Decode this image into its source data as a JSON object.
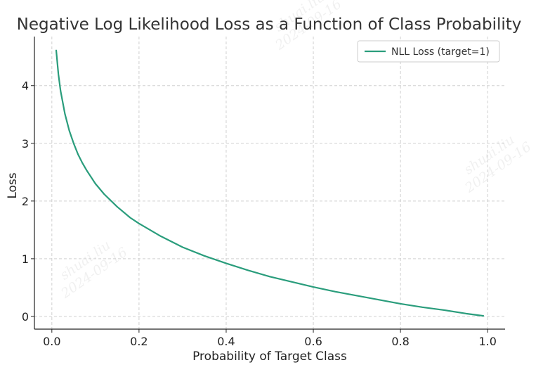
{
  "chart_data": {
    "type": "line",
    "title": "Negative Log Likelihood Loss as a Function of Class Probability",
    "xlabel": "Probability of Target Class",
    "ylabel": "Loss",
    "xlim": [
      -0.04,
      1.04
    ],
    "ylim": [
      -0.22,
      4.85
    ],
    "x_ticks": [
      0.0,
      0.2,
      0.4,
      0.6,
      0.8,
      1.0
    ],
    "x_tick_labels": [
      "0.0",
      "0.2",
      "0.4",
      "0.6",
      "0.8",
      "1.0"
    ],
    "y_ticks": [
      0,
      1,
      2,
      3,
      4
    ],
    "y_tick_labels": [
      "0",
      "1",
      "2",
      "3",
      "4"
    ],
    "grid": true,
    "legend_position": "top-right",
    "series": [
      {
        "name": "NLL Loss (target=1)",
        "color": "#2a9d7c",
        "x": [
          0.01,
          0.015,
          0.02,
          0.03,
          0.04,
          0.05,
          0.06,
          0.07,
          0.08,
          0.1,
          0.12,
          0.15,
          0.18,
          0.2,
          0.25,
          0.3,
          0.35,
          0.4,
          0.45,
          0.5,
          0.55,
          0.6,
          0.65,
          0.7,
          0.75,
          0.8,
          0.85,
          0.9,
          0.95,
          0.99
        ],
        "y": [
          4.61,
          4.2,
          3.91,
          3.51,
          3.22,
          3.0,
          2.81,
          2.66,
          2.53,
          2.3,
          2.12,
          1.9,
          1.71,
          1.61,
          1.39,
          1.2,
          1.05,
          0.92,
          0.8,
          0.69,
          0.6,
          0.51,
          0.43,
          0.36,
          0.29,
          0.22,
          0.16,
          0.11,
          0.05,
          0.01
        ]
      }
    ]
  },
  "watermark": {
    "name": "shuai.liu",
    "date": "2024-09-16"
  }
}
